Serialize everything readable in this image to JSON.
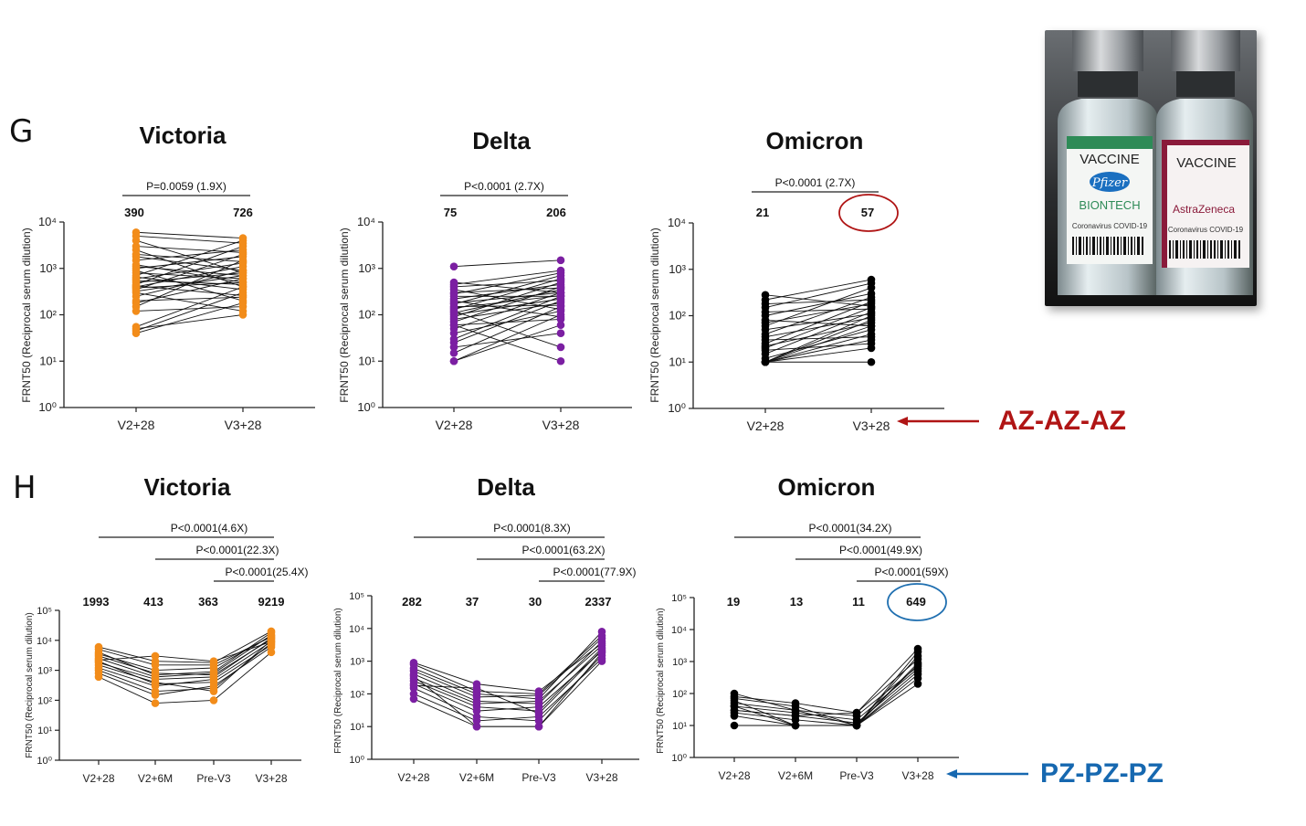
{
  "panels": {
    "G": {
      "letter": "G",
      "legend": "AZ-AZ-AZ",
      "legend_color": "#b01515",
      "arrow_color": "#b01515"
    },
    "H": {
      "letter": "H",
      "legend": "PZ-PZ-PZ",
      "legend_color": "#1668b0",
      "arrow_color": "#1668b0"
    }
  },
  "photo": {
    "label_left": "VACCINE",
    "label_right": "VACCINE",
    "brand_left_1": "Pfizer",
    "brand_left_2": "BIONTECH",
    "brand_right": "AstraZeneca",
    "sub_left": "Coronavirus COVID-19",
    "sub_right": "Coronavirus COVID-19"
  },
  "chart_data": [
    {
      "type": "scatter",
      "panel": "G",
      "title": "Victoria",
      "color": "#f28c1a",
      "ylabel": "FRNT50  (Reciprocal serum dilution)",
      "yscale": "log",
      "ylim_exp": [
        0,
        4
      ],
      "categories": [
        "V2+28",
        "V3+28"
      ],
      "medians": [
        "390",
        "726"
      ],
      "comparisons": [
        {
          "label": "P=0.0059 (1.9X)",
          "from": 0,
          "to": 1
        }
      ],
      "pairs": [
        [
          40,
          180
        ],
        [
          45,
          300
        ],
        [
          50,
          100
        ],
        [
          55,
          400
        ],
        [
          120,
          150
        ],
        [
          150,
          1500
        ],
        [
          180,
          600
        ],
        [
          200,
          240
        ],
        [
          250,
          900
        ],
        [
          300,
          120
        ],
        [
          320,
          700
        ],
        [
          350,
          2000
        ],
        [
          380,
          500
        ],
        [
          400,
          1100
        ],
        [
          420,
          260
        ],
        [
          450,
          3000
        ],
        [
          500,
          800
        ],
        [
          550,
          450
        ],
        [
          600,
          1300
        ],
        [
          650,
          350
        ],
        [
          700,
          4000
        ],
        [
          800,
          600
        ],
        [
          900,
          200
        ],
        [
          1000,
          1800
        ],
        [
          1100,
          700
        ],
        [
          1200,
          500
        ],
        [
          1500,
          2500
        ],
        [
          1800,
          900
        ],
        [
          2000,
          1400
        ],
        [
          2500,
          400
        ],
        [
          3000,
          2200
        ],
        [
          4000,
          800
        ],
        [
          5000,
          3500
        ],
        [
          6000,
          4500
        ]
      ],
      "circled": null
    },
    {
      "type": "scatter",
      "panel": "G",
      "title": "Delta",
      "color": "#7b1fa2",
      "ylabel": "FRNT50  (Reciprocal serum dilution)",
      "yscale": "log",
      "ylim_exp": [
        0,
        4
      ],
      "categories": [
        "V2+28",
        "V3+28"
      ],
      "medians": [
        "75",
        "206"
      ],
      "comparisons": [
        {
          "label": "P<0.0001 (2.7X)",
          "from": 0,
          "to": 1
        }
      ],
      "pairs": [
        [
          10,
          60
        ],
        [
          10,
          100
        ],
        [
          15,
          150
        ],
        [
          20,
          40
        ],
        [
          25,
          200
        ],
        [
          30,
          250
        ],
        [
          40,
          120
        ],
        [
          50,
          300
        ],
        [
          60,
          80
        ],
        [
          70,
          400
        ],
        [
          80,
          180
        ],
        [
          90,
          500
        ],
        [
          100,
          220
        ],
        [
          110,
          350
        ],
        [
          120,
          20
        ],
        [
          130,
          600
        ],
        [
          140,
          260
        ],
        [
          150,
          160
        ],
        [
          170,
          700
        ],
        [
          180,
          300
        ],
        [
          200,
          90
        ],
        [
          220,
          450
        ],
        [
          250,
          250
        ],
        [
          280,
          800
        ],
        [
          300,
          380
        ],
        [
          350,
          130
        ],
        [
          400,
          550
        ],
        [
          450,
          900
        ],
        [
          500,
          300
        ],
        [
          1100,
          1500
        ],
        [
          60,
          10
        ]
      ],
      "circled": null
    },
    {
      "type": "scatter",
      "panel": "G",
      "title": "Omicron",
      "color": "#000000",
      "ylabel": "FRNT50  (Reciprocal serum dilution)",
      "yscale": "log",
      "ylim_exp": [
        0,
        4
      ],
      "categories": [
        "V2+28",
        "V3+28"
      ],
      "medians": [
        "21",
        "57"
      ],
      "comparisons": [
        {
          "label": "P<0.0001 (2.7X)",
          "from": 0,
          "to": 1
        }
      ],
      "pairs": [
        [
          10,
          10
        ],
        [
          10,
          20
        ],
        [
          10,
          30
        ],
        [
          10,
          40
        ],
        [
          10,
          60
        ],
        [
          10,
          80
        ],
        [
          10,
          100
        ],
        [
          12,
          50
        ],
        [
          15,
          120
        ],
        [
          18,
          25
        ],
        [
          20,
          150
        ],
        [
          22,
          70
        ],
        [
          25,
          200
        ],
        [
          30,
          35
        ],
        [
          35,
          90
        ],
        [
          40,
          250
        ],
        [
          50,
          110
        ],
        [
          60,
          400
        ],
        [
          70,
          180
        ],
        [
          80,
          60
        ],
        [
          100,
          300
        ],
        [
          120,
          140
        ],
        [
          150,
          500
        ],
        [
          180,
          220
        ],
        [
          220,
          600
        ],
        [
          280,
          160
        ]
      ],
      "circled": "57",
      "circle_color": "#b01515"
    },
    {
      "type": "scatter",
      "panel": "H",
      "title": "Victoria",
      "color": "#f28c1a",
      "ylabel": "FRNT50  (Reciprocal serum dilution)",
      "yscale": "log",
      "ylim_exp": [
        0,
        5
      ],
      "categories": [
        "V2+28",
        "V2+6M",
        "Pre-V3",
        "V3+28"
      ],
      "medians": [
        "1993",
        "413",
        "363",
        "9219"
      ],
      "comparisons": [
        {
          "label": "P<0.0001(4.6X)",
          "from": 0,
          "to": 3
        },
        {
          "label": "P<0.0001(22.3X)",
          "from": 1,
          "to": 3
        },
        {
          "label": "P<0.0001(25.4X)",
          "from": 2,
          "to": 3
        }
      ],
      "tracks": [
        [
          600,
          80,
          100,
          4000
        ],
        [
          800,
          150,
          300,
          6000
        ],
        [
          1000,
          200,
          250,
          8000
        ],
        [
          1200,
          300,
          500,
          9000
        ],
        [
          1500,
          400,
          200,
          10000
        ],
        [
          1800,
          500,
          600,
          12000
        ],
        [
          2000,
          350,
          400,
          7000
        ],
        [
          2500,
          600,
          800,
          15000
        ],
        [
          3000,
          800,
          700,
          11000
        ],
        [
          3500,
          1000,
          1200,
          14000
        ],
        [
          4000,
          700,
          900,
          18000
        ],
        [
          5000,
          1500,
          1500,
          13000
        ],
        [
          6000,
          2000,
          1800,
          20000
        ],
        [
          2200,
          3000,
          2000,
          9000
        ]
      ],
      "circled": null
    },
    {
      "type": "scatter",
      "panel": "H",
      "title": "Delta",
      "color": "#7b1fa2",
      "ylabel": "FRNT50  (Reciprocal serum dilution)",
      "yscale": "log",
      "ylim_exp": [
        0,
        5
      ],
      "categories": [
        "V2+28",
        "V2+6M",
        "Pre-V3",
        "V3+28"
      ],
      "medians": [
        "282",
        "37",
        "30",
        "2337"
      ],
      "comparisons": [
        {
          "label": "P<0.0001(8.3X)",
          "from": 0,
          "to": 3
        },
        {
          "label": "P<0.0001(63.2X)",
          "from": 1,
          "to": 3
        },
        {
          "label": "P<0.0001(77.9X)",
          "from": 2,
          "to": 3
        }
      ],
      "tracks": [
        [
          70,
          10,
          10,
          1000
        ],
        [
          100,
          15,
          20,
          1200
        ],
        [
          150,
          20,
          15,
          1500
        ],
        [
          200,
          30,
          40,
          2000
        ],
        [
          250,
          40,
          30,
          2500
        ],
        [
          300,
          50,
          60,
          3000
        ],
        [
          400,
          60,
          50,
          4000
        ],
        [
          500,
          80,
          90,
          5000
        ],
        [
          600,
          100,
          70,
          8000
        ],
        [
          800,
          120,
          100,
          6000
        ],
        [
          900,
          200,
          120,
          3500
        ],
        [
          350,
          10,
          10,
          1800
        ],
        [
          180,
          150,
          25,
          2200
        ]
      ],
      "circled": null
    },
    {
      "type": "scatter",
      "panel": "H",
      "title": "Omicron",
      "color": "#000000",
      "ylabel": "FRNT50  (Reciprocal serum dilution)",
      "yscale": "log",
      "ylim_exp": [
        0,
        5
      ],
      "categories": [
        "V2+28",
        "V2+6M",
        "Pre-V3",
        "V3+28"
      ],
      "medians": [
        "19",
        "13",
        "11",
        "649"
      ],
      "comparisons": [
        {
          "label": "P<0.0001(34.2X)",
          "from": 0,
          "to": 3
        },
        {
          "label": "P<0.0001(49.9X)",
          "from": 1,
          "to": 3
        },
        {
          "label": "P<0.0001(59X)",
          "from": 2,
          "to": 3
        }
      ],
      "tracks": [
        [
          10,
          10,
          10,
          200
        ],
        [
          20,
          10,
          10,
          300
        ],
        [
          25,
          15,
          10,
          400
        ],
        [
          30,
          20,
          12,
          500
        ],
        [
          40,
          25,
          15,
          600
        ],
        [
          50,
          30,
          20,
          700
        ],
        [
          60,
          10,
          10,
          900
        ],
        [
          80,
          50,
          25,
          1200
        ],
        [
          100,
          30,
          10,
          1500
        ],
        [
          40,
          10,
          10,
          2000
        ],
        [
          30,
          20,
          25,
          2500
        ],
        [
          70,
          40,
          10,
          800
        ]
      ],
      "circled": "649",
      "circle_color": "#1f6fb0"
    }
  ]
}
